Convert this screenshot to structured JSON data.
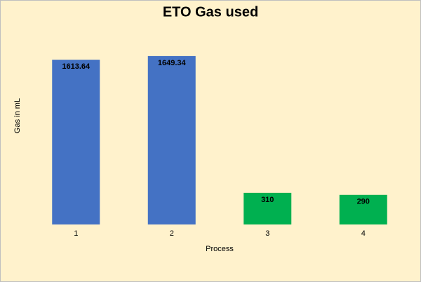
{
  "chart_data": {
    "type": "bar",
    "title": "ETO Gas used",
    "x_label": "Process",
    "y_label": "Gas in mL",
    "categories": [
      "1",
      "2",
      "3",
      "4"
    ],
    "values": [
      1613.64,
      1649.34,
      310,
      290
    ],
    "colors": [
      "#4472c4",
      "#4472c4",
      "#00b050",
      "#00b050"
    ],
    "ylim": [
      0,
      1800
    ]
  }
}
